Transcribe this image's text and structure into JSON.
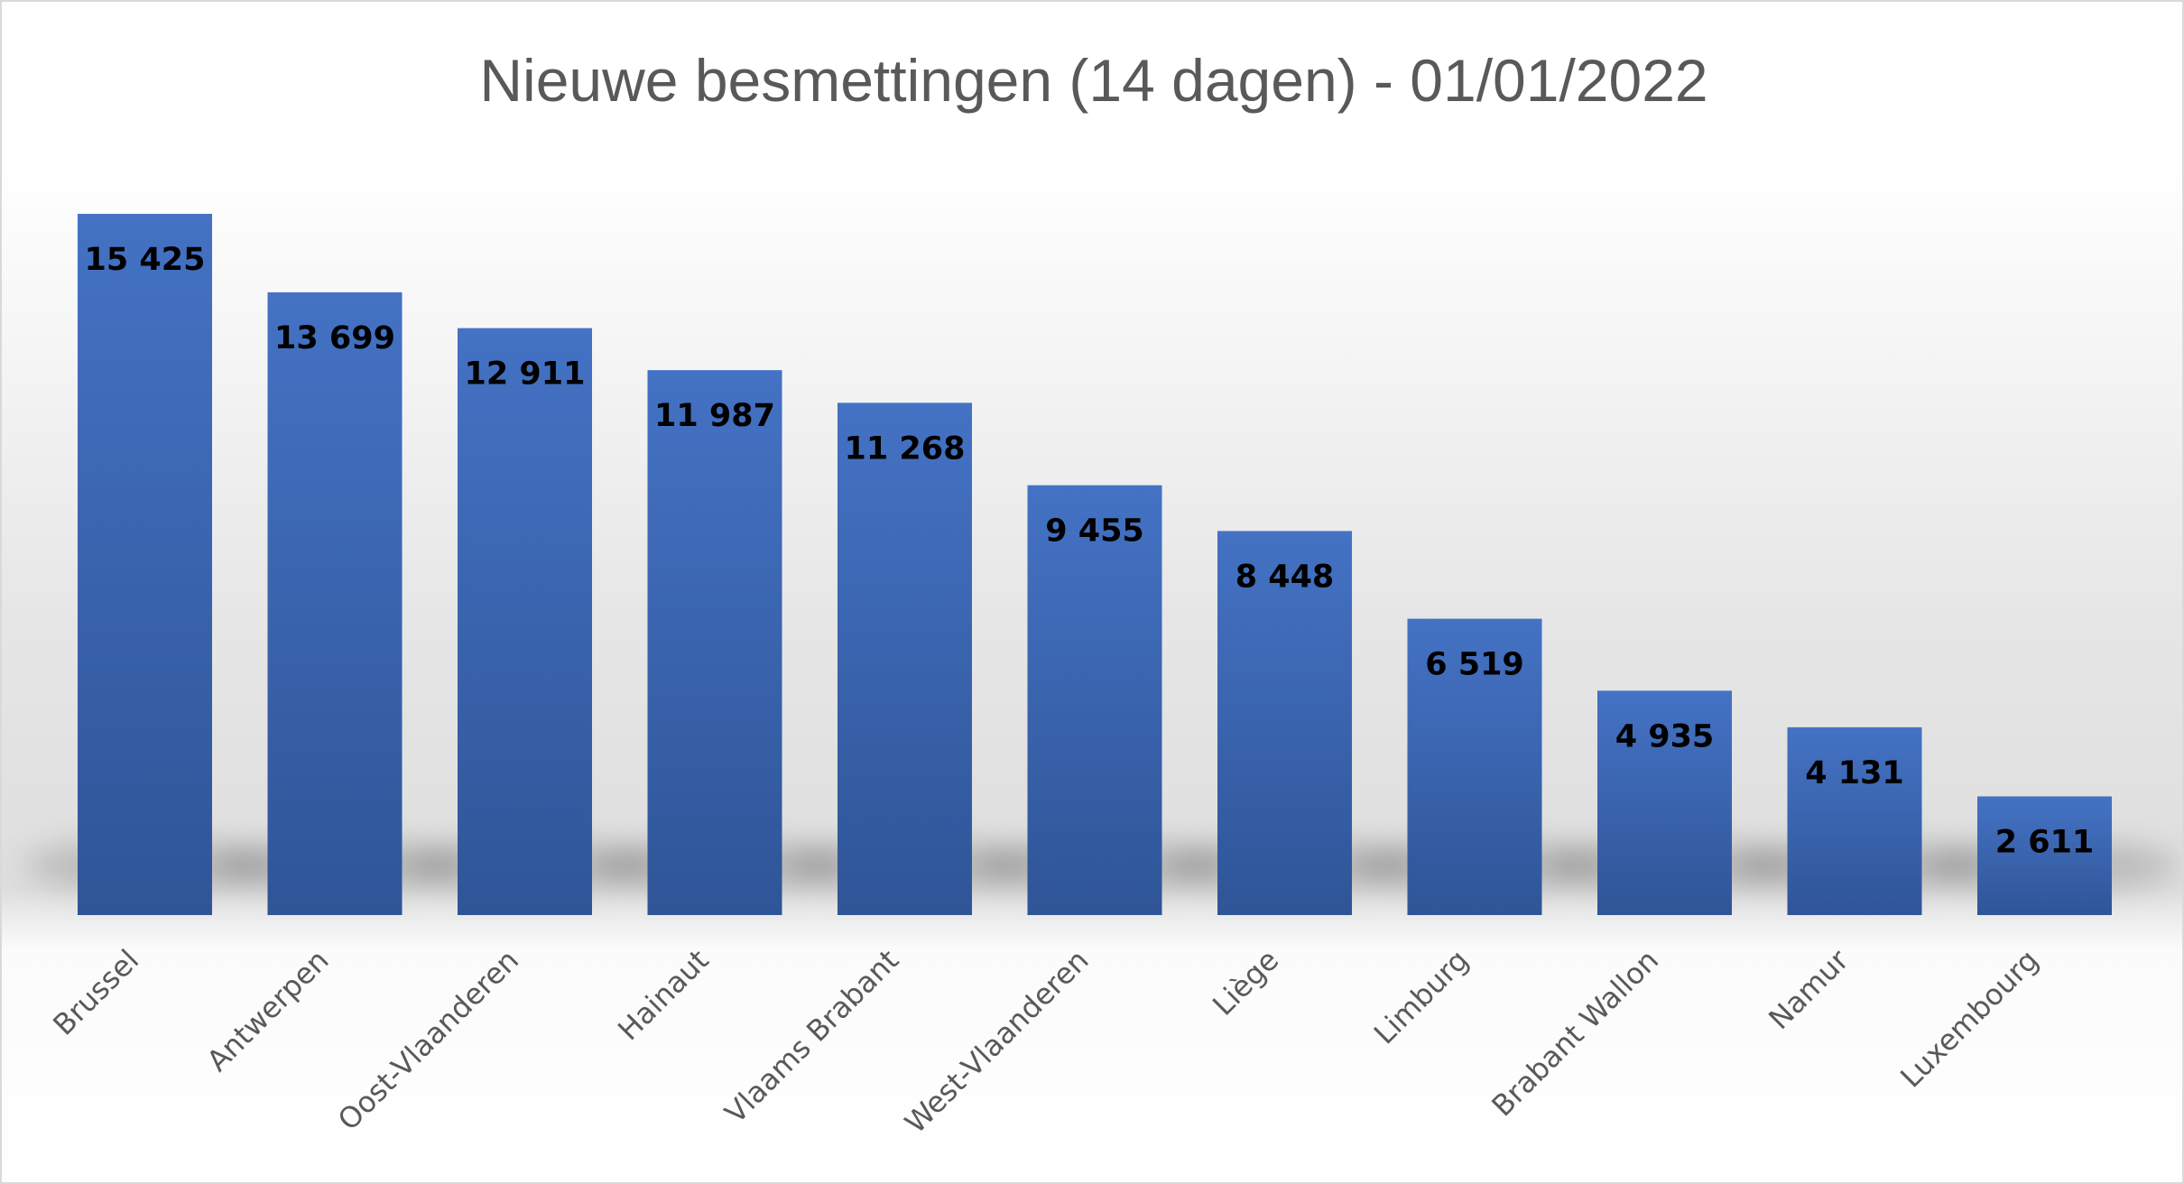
{
  "chart_data": {
    "type": "bar",
    "title": "Nieuwe besmettingen (14 dagen) - 01/01/2022",
    "xlabel": "",
    "ylabel": "",
    "categories": [
      "Brussel",
      "Antwerpen",
      "Oost-Vlaanderen",
      "Hainaut",
      "Vlaams Brabant",
      "West-Vlaanderen",
      "Liège",
      "Limburg",
      "Brabant Wallon",
      "Namur",
      "Luxembourg"
    ],
    "values": [
      15425,
      13699,
      12911,
      11987,
      11268,
      9455,
      8448,
      6519,
      4935,
      4131,
      2611
    ],
    "value_labels": [
      "15 425",
      "13 699",
      "12 911",
      "11 987",
      "11 268",
      "9 455",
      "8 448",
      "6 519",
      "4 935",
      "4 131",
      "2 611"
    ],
    "ylim": [
      0,
      16000
    ],
    "grid": false,
    "legend": "none",
    "bar_color": "#4472c4",
    "bar_color_dark": "#2f5597",
    "title_color": "#595959",
    "label_color": "#595959",
    "value_label_color": "#000000"
  }
}
